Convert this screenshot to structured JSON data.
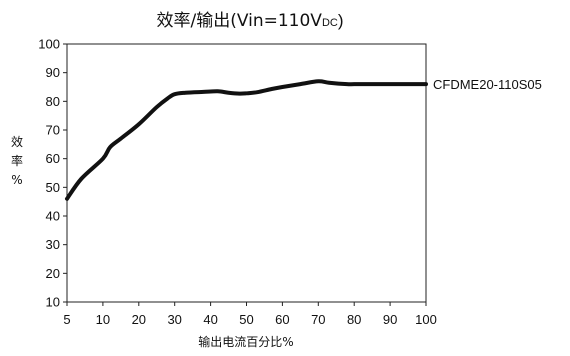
{
  "chart_data": {
    "type": "line",
    "title_main": "效率/输出(Vin=110V",
    "title_sub": "DC",
    "title_close": ")",
    "xlabel": "输出电流百分比%",
    "ylabel_chars": [
      "效",
      "率",
      "%"
    ],
    "x_ticks": [
      "5",
      "10",
      "20",
      "30",
      "40",
      "50",
      "60",
      "70",
      "80",
      "90",
      "100"
    ],
    "y_ticks": [
      "100",
      "90",
      "80",
      "70",
      "60",
      "50",
      "40",
      "30",
      "20",
      "10"
    ],
    "ylim": [
      10,
      100
    ],
    "grid": false,
    "series": [
      {
        "name": "CFDME20-110S05",
        "x": [
          5,
          7,
          10,
          12,
          15,
          20,
          25,
          28,
          30,
          33,
          38,
          42,
          45,
          48,
          50,
          53,
          57,
          60,
          65,
          70,
          73,
          78,
          80,
          85,
          90,
          95,
          100
        ],
        "y": [
          46,
          53,
          60,
          64,
          67,
          72,
          78,
          81,
          82.5,
          83,
          83.3,
          83.5,
          83,
          82.7,
          82.8,
          83.2,
          84.3,
          85,
          86,
          87,
          86.5,
          86,
          86,
          86,
          86,
          86,
          86
        ]
      }
    ]
  }
}
